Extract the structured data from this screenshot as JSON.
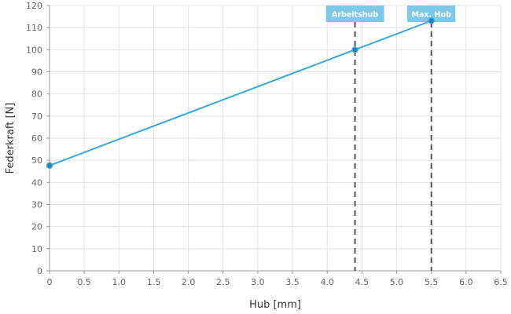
{
  "chart_data": {
    "type": "line",
    "title": "",
    "xlabel": "Hub [mm]",
    "ylabel": "Federkraft [N]",
    "xlim": [
      0,
      6.5
    ],
    "ylim": [
      0,
      120
    ],
    "x_ticks": [
      "0",
      "0.5",
      "1.0",
      "1.5",
      "2.0",
      "2.5",
      "3.0",
      "3.5",
      "4.0",
      "4.5",
      "5.0",
      "5.5",
      "6.0",
      "6.5"
    ],
    "y_ticks": [
      "0",
      "10",
      "20",
      "30",
      "40",
      "50",
      "60",
      "70",
      "80",
      "90",
      "100",
      "110",
      "120"
    ],
    "grid": true,
    "series": [
      {
        "points": [
          {
            "x": 0,
            "y": 47.6
          },
          {
            "x": 4.4,
            "y": 100
          },
          {
            "x": 5.5,
            "y": 113.1
          }
        ]
      }
    ],
    "markers": [
      {
        "label": "Arbeitshub",
        "x": 4.4
      },
      {
        "label": "Max. Hub",
        "x": 5.5
      }
    ],
    "colors": {
      "line": "#3aa8d8",
      "point": "#2a7fa8",
      "marker_line": "#555555",
      "marker_box": "#7ec8e8",
      "grid": "#e3e3e3"
    }
  }
}
